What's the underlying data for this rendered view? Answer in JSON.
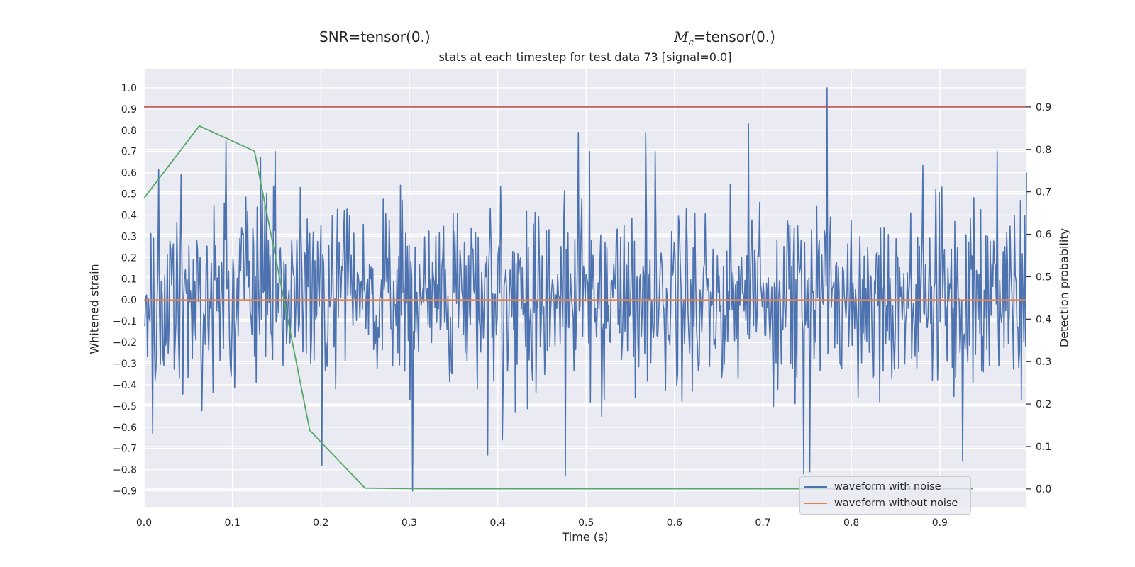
{
  "titles": {
    "snr": "SNR=tensor(0.)",
    "mc_symbol": "M",
    "mc_sub": "c",
    "mc_value": "=tensor(0.)",
    "subtitle": "stats at each timestep for test data 73 [signal=0.0]"
  },
  "chart_data": {
    "type": "line",
    "xlabel": "Time (s)",
    "ylabel": "Whitened strain",
    "ylabel_right": "Detection probability",
    "xlim": [
      0.0,
      0.998
    ],
    "ylim": [
      -0.975,
      1.09
    ],
    "ylim_right": [
      -0.042,
      0.99
    ],
    "x_ticks": [
      "0.0",
      "0.1",
      "0.2",
      "0.3",
      "0.4",
      "0.5",
      "0.6",
      "0.7",
      "0.8",
      "0.9"
    ],
    "y_ticks": [
      "1.0",
      "0.9",
      "0.8",
      "0.7",
      "0.6",
      "0.5",
      "0.4",
      "0.3",
      "0.2",
      "0.1",
      "0.0",
      "−0.1",
      "−0.2",
      "−0.3",
      "−0.4",
      "−0.5",
      "−0.6",
      "−0.7",
      "−0.8",
      "−0.9"
    ],
    "y_ticks_right": [
      "0.9",
      "0.8",
      "0.7",
      "0.6",
      "0.5",
      "0.4",
      "0.3",
      "0.2",
      "0.1",
      "0.0"
    ],
    "grid": true,
    "legend_position": "lower-right",
    "colors": {
      "background": "#eaeaf2",
      "grid": "#ffffff",
      "noisy": "#4c72b0",
      "clean": "#dd8452",
      "probability": "#55a868",
      "threshold": "#c44e52"
    },
    "series": [
      {
        "name": "waveform with noise",
        "axis": "left",
        "sampling_rate": 1024,
        "peaks": [
          {
            "x": 0.01,
            "y": -0.63
          },
          {
            "x": 0.042,
            "y": 0.59
          },
          {
            "x": 0.093,
            "y": 0.75
          },
          {
            "x": 0.132,
            "y": 0.67
          },
          {
            "x": 0.201,
            "y": -0.78
          },
          {
            "x": 0.304,
            "y": -0.9
          },
          {
            "x": 0.389,
            "y": -0.73
          },
          {
            "x": 0.477,
            "y": -0.83
          },
          {
            "x": 0.491,
            "y": 0.79
          },
          {
            "x": 0.567,
            "y": 0.79
          },
          {
            "x": 0.684,
            "y": 0.83
          },
          {
            "x": 0.746,
            "y": -0.82
          },
          {
            "x": 0.7525,
            "y": -0.81
          },
          {
            "x": 0.772,
            "y": 1.0
          },
          {
            "x": 0.926,
            "y": -0.76
          },
          {
            "x": 0.965,
            "y": 0.7
          },
          {
            "x": 0.998,
            "y": 0.6
          }
        ]
      },
      {
        "name": "waveform without noise",
        "axis": "left",
        "x": [
          0.0,
          0.998
        ],
        "y": [
          0.0,
          0.0
        ]
      },
      {
        "name": "",
        "axis": "right",
        "x": [
          0.0,
          0.0625,
          0.125,
          0.1875,
          0.25,
          0.3125,
          0.375,
          0.4375,
          0.5,
          0.5625,
          0.625,
          0.6875,
          0.75,
          0.8125,
          0.875,
          0.9375
        ],
        "y": [
          0.685,
          0.855,
          0.796,
          0.138,
          0.002,
          0.0005,
          0.0004,
          0.0004,
          0.0004,
          0.0004,
          0.0004,
          0.0004,
          0.0004,
          0.0004,
          0.0004,
          0.0004
        ]
      },
      {
        "name": "",
        "axis": "right",
        "type": "hline",
        "y": 0.9
      }
    ]
  }
}
